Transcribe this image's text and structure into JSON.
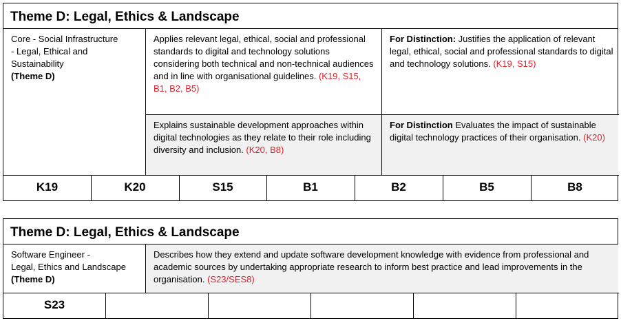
{
  "table1": {
    "title": "Theme D: Legal, Ethics & Landscape",
    "left": {
      "text": "Core - Social Infrastructure\n - Legal, Ethical and\nSustainability",
      "theme": "(Theme D)"
    },
    "r1c1": {
      "text": "Applies relevant legal, ethical, social and professional standards to digital and technology solutions considering both technical and non-technical audiences and in line with organisational guidelines. ",
      "refs": "(K19, S15, B1, B2, B5)"
    },
    "r1c2": {
      "label": "For Distinction:",
      "text": " Justifies the application of relevant legal, ethical, social and professional standards to digital and technology solutions. ",
      "refs": "(K19, S15)"
    },
    "r2c1": {
      "text": "Explains sustainable development approaches within digital technologies as they relate to their role including diversity and inclusion. ",
      "refs": "(K20, B8)"
    },
    "r2c2": {
      "label": "For Distinction",
      "text": " Evaluates the impact of sustainable digital technology practices of their organisation. ",
      "refs": "(K20)"
    },
    "codes": [
      "K19",
      "K20",
      "S15",
      "B1",
      "B2",
      "B5",
      "B8"
    ]
  },
  "table2": {
    "title": "Theme D: Legal, Ethics & Landscape",
    "left": {
      "text": "Software Engineer -\nLegal, Ethics and Landscape",
      "theme": "(Theme D)"
    },
    "desc": {
      "text": "Describes how they extend and update software development knowledge with evidence from professional and academic sources by undertaking appropriate research to inform best practice and lead improvements in the organisation. ",
      "refs": "(S23/SES8)"
    },
    "codes": [
      "S23",
      "",
      "",
      "",
      "",
      ""
    ]
  }
}
